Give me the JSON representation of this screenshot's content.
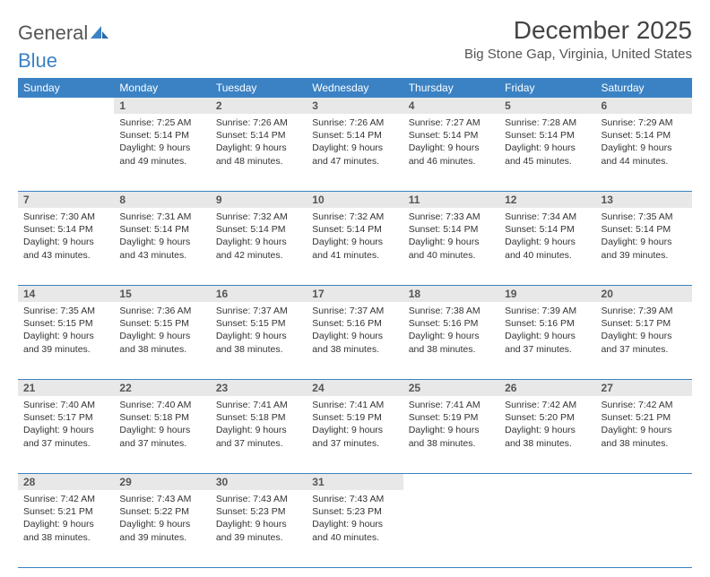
{
  "brand": {
    "name1": "General",
    "name2": "Blue",
    "accent": "#3b82c4"
  },
  "title": "December 2025",
  "location": "Big Stone Gap, Virginia, United States",
  "colors": {
    "header_bg": "#3b82c4",
    "header_fg": "#ffffff",
    "daynum_bg": "#e8e8e8",
    "daynum_fg": "#555555",
    "rule": "#3b82c4",
    "text": "#333333"
  },
  "weekdays": [
    "Sunday",
    "Monday",
    "Tuesday",
    "Wednesday",
    "Thursday",
    "Friday",
    "Saturday"
  ],
  "first_weekday_index": 1,
  "days": [
    {
      "n": 1,
      "sunrise": "7:25 AM",
      "sunset": "5:14 PM",
      "daylight": "9 hours and 49 minutes."
    },
    {
      "n": 2,
      "sunrise": "7:26 AM",
      "sunset": "5:14 PM",
      "daylight": "9 hours and 48 minutes."
    },
    {
      "n": 3,
      "sunrise": "7:26 AM",
      "sunset": "5:14 PM",
      "daylight": "9 hours and 47 minutes."
    },
    {
      "n": 4,
      "sunrise": "7:27 AM",
      "sunset": "5:14 PM",
      "daylight": "9 hours and 46 minutes."
    },
    {
      "n": 5,
      "sunrise": "7:28 AM",
      "sunset": "5:14 PM",
      "daylight": "9 hours and 45 minutes."
    },
    {
      "n": 6,
      "sunrise": "7:29 AM",
      "sunset": "5:14 PM",
      "daylight": "9 hours and 44 minutes."
    },
    {
      "n": 7,
      "sunrise": "7:30 AM",
      "sunset": "5:14 PM",
      "daylight": "9 hours and 43 minutes."
    },
    {
      "n": 8,
      "sunrise": "7:31 AM",
      "sunset": "5:14 PM",
      "daylight": "9 hours and 43 minutes."
    },
    {
      "n": 9,
      "sunrise": "7:32 AM",
      "sunset": "5:14 PM",
      "daylight": "9 hours and 42 minutes."
    },
    {
      "n": 10,
      "sunrise": "7:32 AM",
      "sunset": "5:14 PM",
      "daylight": "9 hours and 41 minutes."
    },
    {
      "n": 11,
      "sunrise": "7:33 AM",
      "sunset": "5:14 PM",
      "daylight": "9 hours and 40 minutes."
    },
    {
      "n": 12,
      "sunrise": "7:34 AM",
      "sunset": "5:14 PM",
      "daylight": "9 hours and 40 minutes."
    },
    {
      "n": 13,
      "sunrise": "7:35 AM",
      "sunset": "5:14 PM",
      "daylight": "9 hours and 39 minutes."
    },
    {
      "n": 14,
      "sunrise": "7:35 AM",
      "sunset": "5:15 PM",
      "daylight": "9 hours and 39 minutes."
    },
    {
      "n": 15,
      "sunrise": "7:36 AM",
      "sunset": "5:15 PM",
      "daylight": "9 hours and 38 minutes."
    },
    {
      "n": 16,
      "sunrise": "7:37 AM",
      "sunset": "5:15 PM",
      "daylight": "9 hours and 38 minutes."
    },
    {
      "n": 17,
      "sunrise": "7:37 AM",
      "sunset": "5:16 PM",
      "daylight": "9 hours and 38 minutes."
    },
    {
      "n": 18,
      "sunrise": "7:38 AM",
      "sunset": "5:16 PM",
      "daylight": "9 hours and 38 minutes."
    },
    {
      "n": 19,
      "sunrise": "7:39 AM",
      "sunset": "5:16 PM",
      "daylight": "9 hours and 37 minutes."
    },
    {
      "n": 20,
      "sunrise": "7:39 AM",
      "sunset": "5:17 PM",
      "daylight": "9 hours and 37 minutes."
    },
    {
      "n": 21,
      "sunrise": "7:40 AM",
      "sunset": "5:17 PM",
      "daylight": "9 hours and 37 minutes."
    },
    {
      "n": 22,
      "sunrise": "7:40 AM",
      "sunset": "5:18 PM",
      "daylight": "9 hours and 37 minutes."
    },
    {
      "n": 23,
      "sunrise": "7:41 AM",
      "sunset": "5:18 PM",
      "daylight": "9 hours and 37 minutes."
    },
    {
      "n": 24,
      "sunrise": "7:41 AM",
      "sunset": "5:19 PM",
      "daylight": "9 hours and 37 minutes."
    },
    {
      "n": 25,
      "sunrise": "7:41 AM",
      "sunset": "5:19 PM",
      "daylight": "9 hours and 38 minutes."
    },
    {
      "n": 26,
      "sunrise": "7:42 AM",
      "sunset": "5:20 PM",
      "daylight": "9 hours and 38 minutes."
    },
    {
      "n": 27,
      "sunrise": "7:42 AM",
      "sunset": "5:21 PM",
      "daylight": "9 hours and 38 minutes."
    },
    {
      "n": 28,
      "sunrise": "7:42 AM",
      "sunset": "5:21 PM",
      "daylight": "9 hours and 38 minutes."
    },
    {
      "n": 29,
      "sunrise": "7:43 AM",
      "sunset": "5:22 PM",
      "daylight": "9 hours and 39 minutes."
    },
    {
      "n": 30,
      "sunrise": "7:43 AM",
      "sunset": "5:23 PM",
      "daylight": "9 hours and 39 minutes."
    },
    {
      "n": 31,
      "sunrise": "7:43 AM",
      "sunset": "5:23 PM",
      "daylight": "9 hours and 40 minutes."
    }
  ],
  "labels": {
    "sunrise": "Sunrise:",
    "sunset": "Sunset:",
    "daylight": "Daylight:"
  }
}
